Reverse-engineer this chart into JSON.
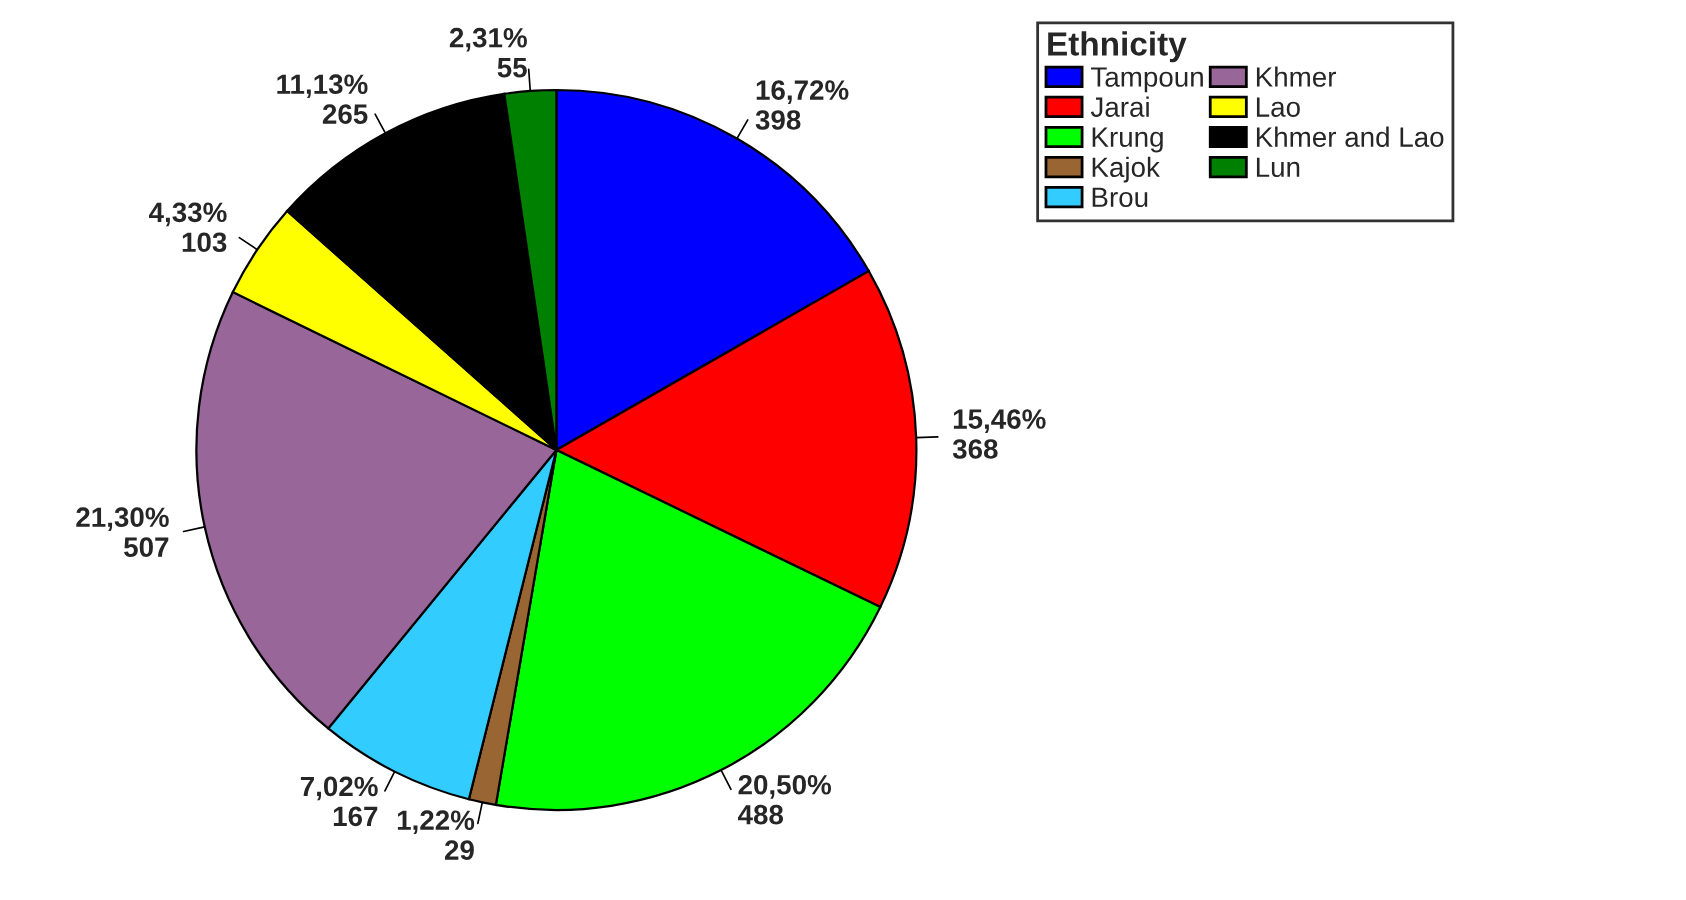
{
  "chart_data": {
    "type": "pie",
    "categories": [
      "Tampoun",
      "Jarai",
      "Krung",
      "Kajok",
      "Brou",
      "Khmer",
      "Lao",
      "Khmer and Lao",
      "Lun"
    ],
    "values": [
      398,
      368,
      488,
      29,
      167,
      507,
      103,
      265,
      55
    ],
    "value_labels": [
      "16,72%\n398",
      "15,46%\n368",
      "20,50%\n488",
      "1,22%\n29",
      "7,02%\n167",
      "21,30%\n507",
      "4,33%\n103",
      "11,13%\n265",
      "2,31%\n55"
    ],
    "colors": [
      "#0000ff",
      "#ff0000",
      "#00ff00",
      "#996633",
      "#33ccff",
      "#996699",
      "#ffff00",
      "#000000",
      "#008000"
    ],
    "legend_title": "Ethnicity",
    "legend": "top right"
  }
}
